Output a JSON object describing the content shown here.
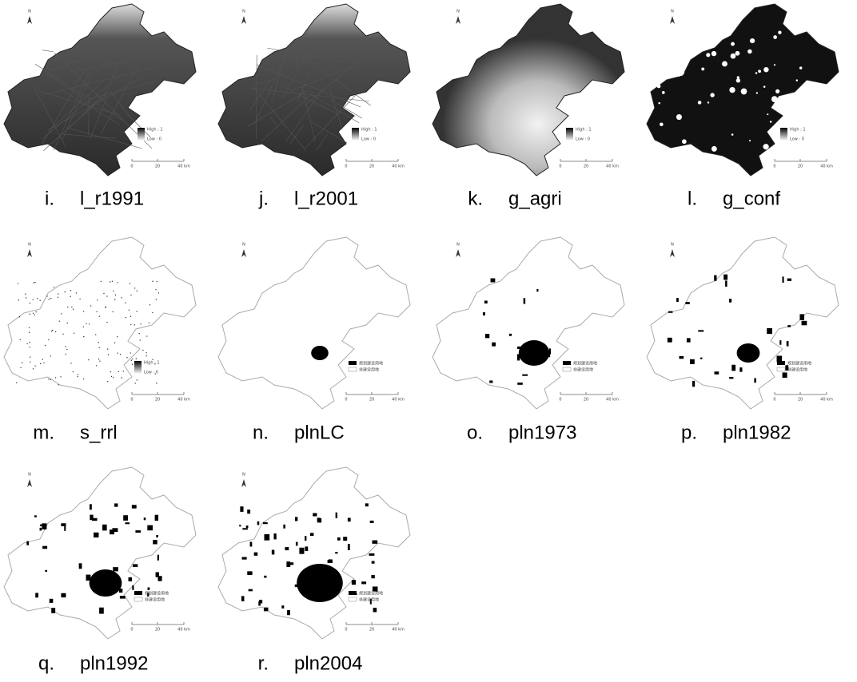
{
  "panels": [
    {
      "letter": "i.",
      "name": "l_r1991",
      "north": "N",
      "legend": [
        "High : 1",
        "Low : 0"
      ],
      "scale": [
        "0",
        "20",
        "40 km"
      ]
    },
    {
      "letter": "j.",
      "name": "l_r2001",
      "north": "N",
      "legend": [
        "High : 1",
        "Low : 0"
      ],
      "scale": [
        "0",
        "20",
        "40 km"
      ]
    },
    {
      "letter": "k.",
      "name": "g_agri",
      "north": "N",
      "legend": [
        "High : 1",
        "Low : 0"
      ],
      "scale": [
        "0",
        "20",
        "40 km"
      ]
    },
    {
      "letter": "l.",
      "name": "g_conf",
      "north": "N",
      "legend": [
        "High : 1",
        "Low : 0"
      ],
      "scale": [
        "0",
        "20",
        "40 km"
      ]
    },
    {
      "letter": "m.",
      "name": "s_rrl",
      "north": "N",
      "legend": [
        "High : 1",
        "Low : 0"
      ],
      "scale": [
        "0",
        "20",
        "40 km"
      ]
    },
    {
      "letter": "n.",
      "name": "plnLC",
      "north": "N",
      "legend": [
        "规划建设用地",
        "非建设用地"
      ],
      "scale": [
        "0",
        "20",
        "40 km"
      ]
    },
    {
      "letter": "o.",
      "name": "pln1973",
      "north": "N",
      "legend": [
        "规划建设用地",
        "非建设用地"
      ],
      "scale": [
        "0",
        "20",
        "40 km"
      ]
    },
    {
      "letter": "p.",
      "name": "pln1982",
      "north": "N",
      "legend": [
        "规划建设用地",
        "非建设用地"
      ],
      "scale": [
        "0",
        "20",
        "40 km"
      ]
    },
    {
      "letter": "q.",
      "name": "pln1992",
      "north": "N",
      "legend": [
        "规划建设用地",
        "非建设用地"
      ],
      "scale": [
        "0",
        "20",
        "40 km"
      ]
    },
    {
      "letter": "r.",
      "name": "pln2004",
      "north": "N",
      "legend": [
        "规划建设用地",
        "非建设用地"
      ],
      "scale": [
        "0",
        "20",
        "40 km"
      ]
    }
  ]
}
